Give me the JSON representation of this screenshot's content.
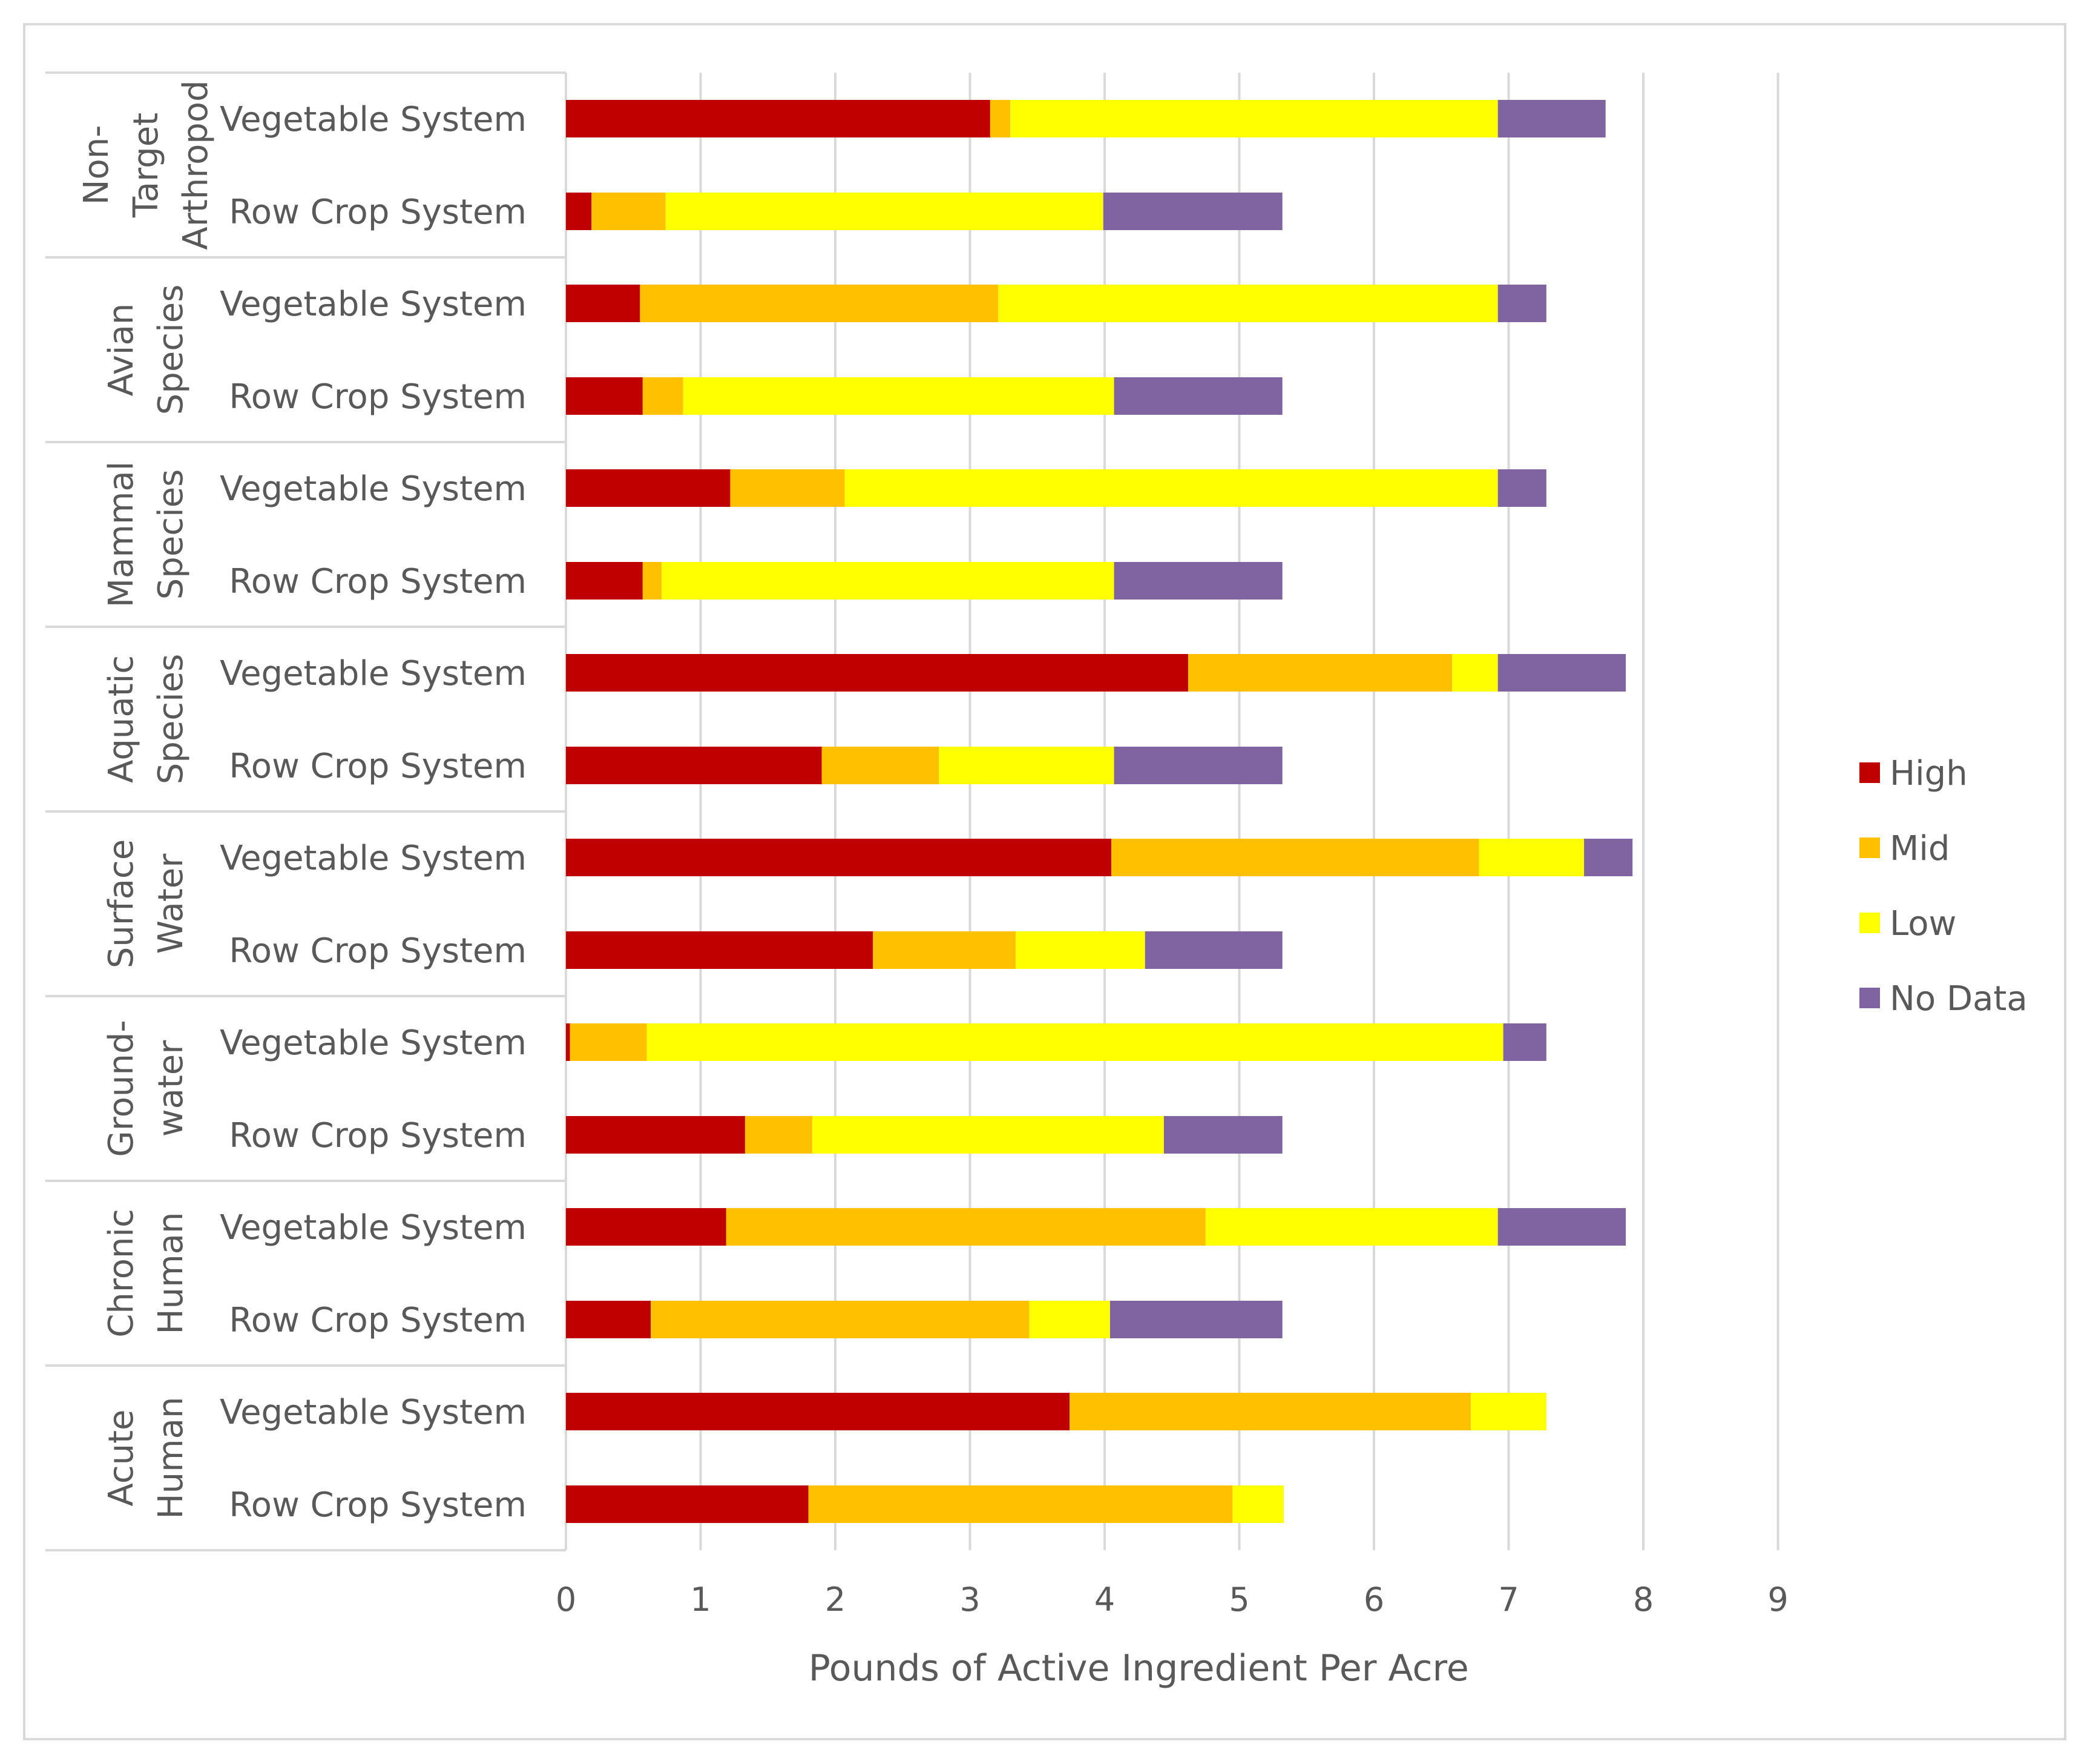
{
  "chart_data": {
    "type": "bar",
    "orientation": "horizontal",
    "stacked": true,
    "xlabel": "Pounds of Active Ingredient Per Acre",
    "xlim": [
      0,
      9
    ],
    "xticks": [
      0,
      1,
      2,
      3,
      4,
      5,
      6,
      7,
      8,
      9
    ],
    "grid": true,
    "legend_position": "right",
    "colors": {
      "High": "#c00000",
      "Mid": "#ffc000",
      "Low": "#ffff00",
      "No Data": "#8064a2"
    },
    "series_names": [
      "High",
      "Mid",
      "Low",
      "No Data"
    ],
    "groups": [
      {
        "label_lines": [
          "Non-",
          "Target",
          "Arthropod"
        ],
        "rows": [
          {
            "label": "Vegetable System",
            "values": [
              3.15,
              0.15,
              3.62,
              0.8
            ]
          },
          {
            "label": "Row Crop System",
            "values": [
              0.19,
              0.55,
              3.25,
              1.33
            ]
          }
        ]
      },
      {
        "label_lines": [
          "Avian",
          "Species"
        ],
        "rows": [
          {
            "label": "Vegetable System",
            "values": [
              0.55,
              2.66,
              3.71,
              0.36
            ]
          },
          {
            "label": "Row Crop System",
            "values": [
              0.57,
              0.3,
              3.2,
              1.25
            ]
          }
        ]
      },
      {
        "label_lines": [
          "Mammal",
          "Species"
        ],
        "rows": [
          {
            "label": "Vegetable System",
            "values": [
              1.22,
              0.85,
              4.85,
              0.36
            ]
          },
          {
            "label": "Row Crop System",
            "values": [
              0.57,
              0.14,
              3.36,
              1.25
            ]
          }
        ]
      },
      {
        "label_lines": [
          "Aquatic",
          "Species"
        ],
        "rows": [
          {
            "label": "Vegetable System",
            "values": [
              4.62,
              1.96,
              0.34,
              0.95
            ]
          },
          {
            "label": "Row Crop System",
            "values": [
              1.9,
              0.87,
              1.3,
              1.25
            ]
          }
        ]
      },
      {
        "label_lines": [
          "Surface",
          "Water"
        ],
        "rows": [
          {
            "label": "Vegetable System",
            "values": [
              4.05,
              2.73,
              0.78,
              0.36
            ]
          },
          {
            "label": "Row Crop System",
            "values": [
              2.28,
              1.06,
              0.96,
              1.02
            ]
          }
        ]
      },
      {
        "label_lines": [
          "Ground-",
          "water"
        ],
        "rows": [
          {
            "label": "Vegetable System",
            "values": [
              0.03,
              0.57,
              6.36,
              0.32
            ]
          },
          {
            "label": "Row Crop System",
            "values": [
              1.33,
              0.5,
              2.61,
              0.88
            ]
          }
        ]
      },
      {
        "label_lines": [
          "Chronic",
          "Human"
        ],
        "rows": [
          {
            "label": "Vegetable System",
            "values": [
              1.19,
              3.56,
              2.17,
              0.95
            ]
          },
          {
            "label": "Row Crop System",
            "values": [
              0.63,
              2.81,
              0.6,
              1.28
            ]
          }
        ]
      },
      {
        "label_lines": [
          "Acute",
          "Human"
        ],
        "rows": [
          {
            "label": "Vegetable System",
            "values": [
              3.74,
              2.98,
              0.56,
              0.0
            ]
          },
          {
            "label": "Row Crop System",
            "values": [
              1.8,
              3.15,
              0.38,
              0.0
            ]
          }
        ]
      }
    ]
  }
}
